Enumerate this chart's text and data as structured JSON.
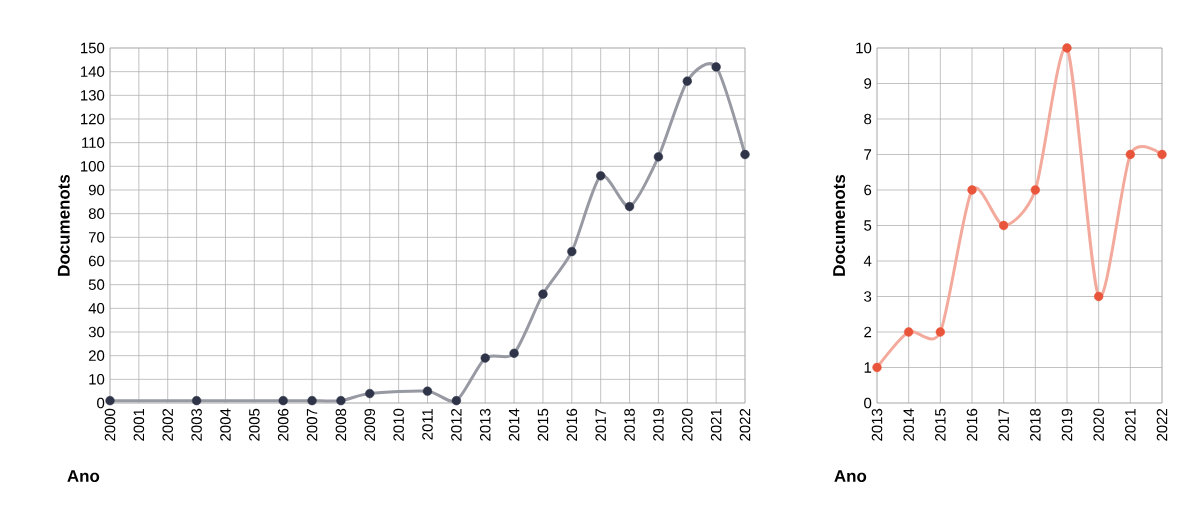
{
  "chart_data": [
    {
      "type": "line",
      "xlabel": "Ano",
      "ylabel": "Documenots",
      "x": [
        2000,
        2003,
        2006,
        2007,
        2008,
        2009,
        2011,
        2012,
        2013,
        2014,
        2015,
        2016,
        2017,
        2018,
        2019,
        2020,
        2021,
        2022
      ],
      "series": [
        {
          "color": "#2f3448",
          "values": [
            1,
            1,
            1,
            1,
            1,
            4,
            5,
            1,
            19,
            21,
            46,
            64,
            96,
            83,
            104,
            136,
            142,
            105
          ]
        }
      ],
      "xlim": [
        2000,
        2022
      ],
      "xticks": [
        2000,
        2001,
        2002,
        2003,
        2004,
        2005,
        2006,
        2007,
        2008,
        2009,
        2010,
        2011,
        2012,
        2013,
        2014,
        2015,
        2016,
        2017,
        2018,
        2019,
        2020,
        2021,
        2022
      ],
      "ylim": [
        0,
        150
      ],
      "yticks": [
        0,
        10,
        20,
        30,
        40,
        50,
        60,
        70,
        80,
        90,
        100,
        110,
        120,
        130,
        140,
        150
      ],
      "grid": true,
      "marker": "circle"
    },
    {
      "type": "line",
      "xlabel": "Ano",
      "ylabel": "Documenots",
      "categories": [
        "2013",
        "2014",
        "2015",
        "2016",
        "2017",
        "2018",
        "2019",
        "2020",
        "2021",
        "2022"
      ],
      "series": [
        {
          "color": "#e8553a",
          "values": [
            1,
            2,
            2,
            6,
            5,
            6,
            10,
            3,
            7,
            7
          ]
        }
      ],
      "ylim": [
        0,
        10
      ],
      "yticks": [
        0,
        1,
        2,
        3,
        4,
        5,
        6,
        7,
        8,
        9,
        10
      ],
      "grid": true,
      "marker": "circle"
    }
  ]
}
